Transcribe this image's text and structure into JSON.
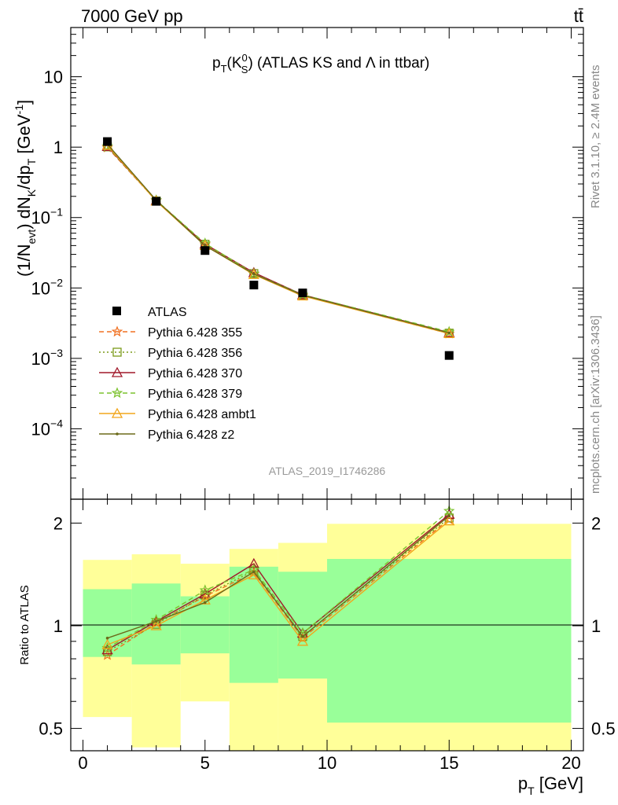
{
  "header": {
    "left": "7000 GeV pp",
    "right": "tt̄"
  },
  "side_labels": {
    "rivet": "Rivet 3.1.10, ≥ 2.4M events",
    "mcplots": "mcplots.cern.ch [arXiv:1306.3436]"
  },
  "chart_data": [
    {
      "type": "line",
      "panel": "main",
      "title_parts": {
        "p": "p",
        "T": "T",
        "open": "(K",
        "sup": "0",
        "sub": "S",
        "close": ")",
        "rest": " (ATLAS KS and Λ in ttbar)"
      },
      "watermark": "ATLAS_2019_I1746286",
      "ylabel_parts": {
        "a": "(1/N",
        "evt": "evt",
        "b": ") dN",
        "K": "K",
        "c": "/dp",
        "T": "T",
        "d": " [GeV",
        "exp": "-1",
        "e": "]"
      },
      "yscale": "log",
      "ylim": [
        1e-05,
        50
      ],
      "xlim": [
        -0.5,
        20.5
      ],
      "yticks": [
        {
          "value": 10,
          "label": "10",
          "sup": ""
        },
        {
          "value": 1,
          "label": "1",
          "sup": ""
        },
        {
          "value": 0.1,
          "label": "10",
          "sup": "−1"
        },
        {
          "value": 0.01,
          "label": "10",
          "sup": "−2"
        },
        {
          "value": 0.001,
          "label": "10",
          "sup": "−3"
        },
        {
          "value": 0.0001,
          "label": "10",
          "sup": "−4"
        }
      ],
      "legend_position": "left-middle",
      "data": {
        "label": "ATLAS",
        "x": [
          1,
          3,
          5,
          7,
          9,
          15
        ],
        "y": [
          1.2,
          0.17,
          0.034,
          0.011,
          0.0085,
          0.0011
        ]
      },
      "series": [
        {
          "name": "Pythia 6.428 355",
          "color": "#f07020",
          "dash": "6,4",
          "marker": "star",
          "y": [
            0.99,
            0.174,
            0.0415,
            0.0158,
            0.00775,
            0.00225
          ]
        },
        {
          "name": "Pythia 6.428 356",
          "color": "#7b9a1a",
          "dash": "2,3",
          "marker": "square",
          "y": [
            1.01,
            0.172,
            0.0418,
            0.016,
            0.0079,
            0.00228
          ]
        },
        {
          "name": "Pythia 6.428 370",
          "color": "#a0182a",
          "dash": "",
          "marker": "triangle",
          "y": [
            1.02,
            0.175,
            0.042,
            0.0165,
            0.008,
            0.00232
          ]
        },
        {
          "name": "Pythia 6.428 379",
          "color": "#7cc22e",
          "dash": "6,4",
          "marker": "star",
          "y": [
            1.03,
            0.176,
            0.043,
            0.016,
            0.008,
            0.00238
          ]
        },
        {
          "name": "Pythia 6.428 ambt1",
          "color": "#f2a51a",
          "dash": "",
          "marker": "triangle",
          "y": [
            1.06,
            0.171,
            0.04,
            0.0155,
            0.0077,
            0.00225
          ]
        },
        {
          "name": "Pythia 6.428 z2",
          "color": "#6b6a1a",
          "dash": "",
          "marker": "dot",
          "y": [
            1.1,
            0.176,
            0.0398,
            0.0158,
            0.0079,
            0.0023
          ]
        }
      ]
    },
    {
      "type": "line",
      "panel": "ratio",
      "ylabel": "Ratio to ATLAS",
      "xlabel_parts": {
        "p": "p",
        "T": "T",
        "rest": " [GeV]"
      },
      "yscale": "log",
      "ylim": [
        0.43,
        2.35
      ],
      "xlim": [
        -0.5,
        20.5
      ],
      "xticks": [
        0,
        5,
        10,
        15,
        20
      ],
      "yticks": [
        {
          "value": 0.5,
          "label": "0.5"
        },
        {
          "value": 1,
          "label": "1"
        },
        {
          "value": 2,
          "label": "2"
        }
      ],
      "bands": [
        {
          "x0": 0,
          "x1": 2,
          "yellow": [
            0.54,
            1.56
          ],
          "green": [
            0.81,
            1.28
          ]
        },
        {
          "x0": 2,
          "x1": 4,
          "yellow": [
            0.44,
            1.62
          ],
          "green": [
            0.77,
            1.33
          ]
        },
        {
          "x0": 4,
          "x1": 6,
          "yellow": [
            0.6,
            1.52
          ],
          "green": [
            0.83,
            1.22
          ]
        },
        {
          "x0": 6,
          "x1": 8,
          "yellow": [
            0.37,
            1.68
          ],
          "green": [
            0.68,
            1.49
          ]
        },
        {
          "x0": 8,
          "x1": 10,
          "yellow": [
            0.33,
            1.75
          ],
          "green": [
            0.7,
            1.44
          ]
        },
        {
          "x0": 10,
          "x1": 20,
          "yellow": [
            0.33,
            1.99
          ],
          "green": [
            0.52,
            1.57
          ]
        }
      ],
      "series": [
        {
          "name": "Pythia 6.428 355",
          "y": [
            0.82,
            1.02,
            1.22,
            1.43,
            0.92,
            2.05
          ]
        },
        {
          "name": "Pythia 6.428 356",
          "y": [
            0.84,
            1.01,
            1.23,
            1.45,
            0.93,
            2.07
          ]
        },
        {
          "name": "Pythia 6.428 370",
          "y": [
            0.85,
            1.03,
            1.24,
            1.52,
            0.95,
            2.12
          ]
        },
        {
          "name": "Pythia 6.428 379",
          "y": [
            0.86,
            1.04,
            1.27,
            1.46,
            0.95,
            2.17
          ]
        },
        {
          "name": "Pythia 6.428 ambt1",
          "y": [
            0.88,
            1.0,
            1.19,
            1.41,
            0.9,
            2.03
          ]
        },
        {
          "name": "Pythia 6.428 z2",
          "y": [
            0.92,
            1.03,
            1.17,
            1.44,
            0.93,
            2.1
          ]
        }
      ]
    }
  ]
}
